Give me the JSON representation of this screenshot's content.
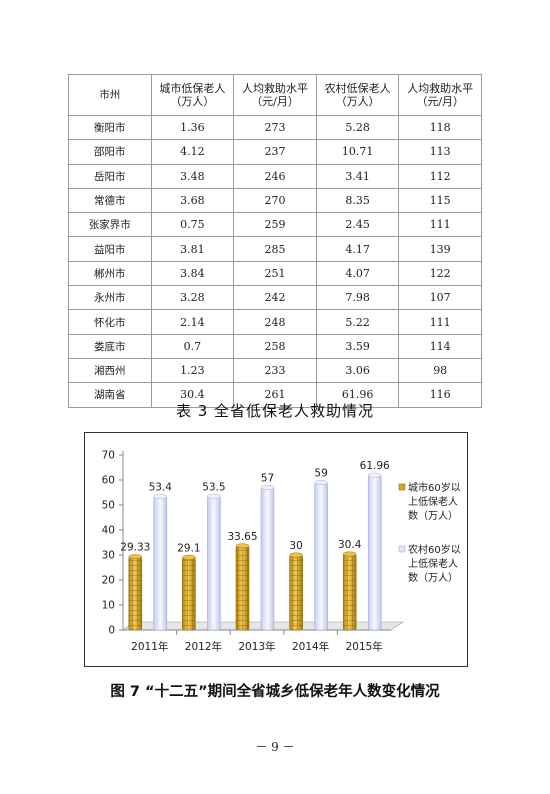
{
  "table": {
    "headers": [
      {
        "line1": "市州",
        "line2": ""
      },
      {
        "line1": "城市低保老人",
        "line2": "（万人）"
      },
      {
        "line1": "人均救助水平",
        "line2": "（元/月）"
      },
      {
        "line1": "农村低保老人",
        "line2": "（万人）"
      },
      {
        "line1": "人均救助水平",
        "line2": "（元/月）"
      }
    ],
    "rows": [
      [
        "衡阳市",
        "1.36",
        "273",
        "5.28",
        "118"
      ],
      [
        "邵阳市",
        "4.12",
        "237",
        "10.71",
        "113"
      ],
      [
        "岳阳市",
        "3.48",
        "246",
        "3.41",
        "112"
      ],
      [
        "常德市",
        "3.68",
        "270",
        "8.35",
        "115"
      ],
      [
        "张家界市",
        "0.75",
        "259",
        "2.45",
        "111"
      ],
      [
        "益阳市",
        "3.81",
        "285",
        "4.17",
        "139"
      ],
      [
        "郴州市",
        "3.84",
        "251",
        "4.07",
        "122"
      ],
      [
        "永州市",
        "3.28",
        "242",
        "7.98",
        "107"
      ],
      [
        "怀化市",
        "2.14",
        "248",
        "5.22",
        "111"
      ],
      [
        "娄底市",
        "0.7",
        "258",
        "3.59",
        "114"
      ],
      [
        "湘西州",
        "1.23",
        "233",
        "3.06",
        "98"
      ],
      [
        "湖南省",
        "30.4",
        "261",
        "61.96",
        "116"
      ]
    ]
  },
  "caption_table": "表 3 全省低保老人救助情况",
  "chart_data": {
    "type": "bar",
    "categories": [
      "2011年",
      "2012年",
      "2013年",
      "2014年",
      "2015年"
    ],
    "series": [
      {
        "name": "城市60岁以上低保老人数（万人）",
        "legend_lines": [
          "城市60岁以",
          "上低保老人",
          "数（万人）"
        ],
        "values": [
          29.33,
          29.1,
          33.65,
          30,
          30.4
        ],
        "labels": [
          "29.33",
          "29.1",
          "33.65",
          "30",
          "30.4"
        ],
        "color": "#d9a520"
      },
      {
        "name": "农村60岁以上低保老人数（万人）",
        "legend_lines": [
          "农村60岁以",
          "上低保老人",
          "数（万人）"
        ],
        "values": [
          53.4,
          53.5,
          57,
          59,
          61.96
        ],
        "labels": [
          "53.4",
          "53.5",
          "57",
          "59",
          "61.96"
        ],
        "color": "#dfe4f7"
      }
    ],
    "ylim": [
      0,
      70
    ],
    "yticks": [
      0,
      10,
      20,
      30,
      40,
      50,
      60,
      70
    ],
    "grid": false,
    "legend": "right"
  },
  "caption_chart": "图 7 “十二五”期间全省城乡低保老年人数变化情况",
  "page_number": "－ 9 －"
}
